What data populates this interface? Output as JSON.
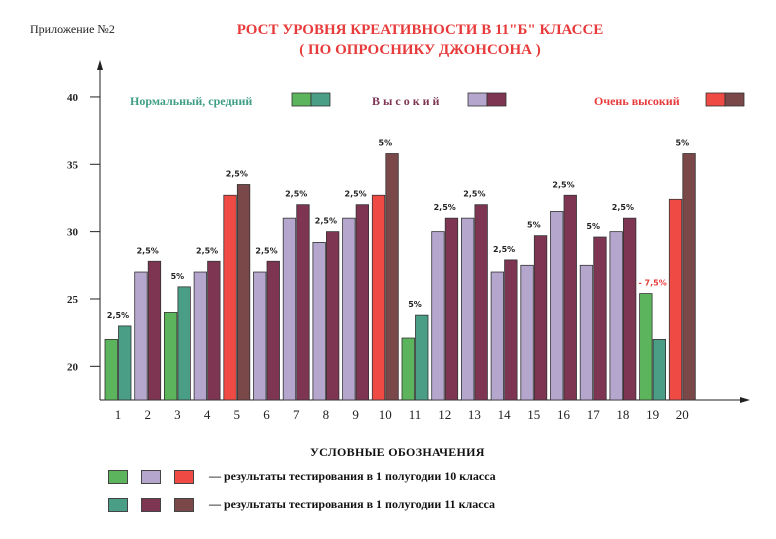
{
  "header": {
    "appendix": "Приложение №2",
    "title_line1": "РОСТ УРОВНЯ КРЕАТИВНОСТИ В 11\"Б\" КЛАССЕ",
    "title_line2": "( ПО ОПРОСНИКУ ДЖОНСОНА )"
  },
  "colors": {
    "normal_10": "#5cb55c",
    "normal_11": "#4a9e86",
    "high_10": "#b4a6cc",
    "high_11": "#7e3552",
    "very_10": "#f04a45",
    "very_11": "#7a4848",
    "level_normal_text": "#3f9e85",
    "level_high_text": "#7e3552",
    "level_very_text": "#e83a3a"
  },
  "chart_data": {
    "type": "bar",
    "title": "РОСТ УРОВНЯ КРЕАТИВНОСТИ В 11\"Б\" КЛАССЕ ( ПО ОПРОСНИКУ ДЖОНСОНА )",
    "categories": [
      "1",
      "2",
      "3",
      "4",
      "5",
      "6",
      "7",
      "8",
      "9",
      "10",
      "11",
      "12",
      "13",
      "14",
      "15",
      "16",
      "17",
      "18",
      "19",
      "20"
    ],
    "ylim": [
      17.5,
      42
    ],
    "yticks": [
      20,
      25,
      30,
      35,
      40
    ],
    "levels": [
      {
        "key": "normal",
        "label": "Нормальный, средний"
      },
      {
        "key": "high",
        "label": "В ы с о к и й"
      },
      {
        "key": "very",
        "label": "Очень высокий"
      }
    ],
    "series": [
      {
        "name": "результаты тестирования в 1 полугодии 10 класса",
        "values": [
          22,
          27,
          24,
          27,
          32.7,
          27,
          31,
          29.2,
          31,
          32.7,
          22.1,
          30,
          31,
          27,
          27.5,
          31.5,
          27.5,
          30,
          25.4,
          32.4
        ]
      },
      {
        "name": "результаты тестирования в 1 полугодии 11 класса",
        "values": [
          23,
          27.8,
          25.9,
          27.8,
          33.5,
          27.8,
          32,
          30,
          32,
          35.8,
          23.8,
          31,
          32,
          27.9,
          29.7,
          32.7,
          29.6,
          31,
          22,
          35.8
        ]
      }
    ],
    "bar_levels": [
      "normal",
      "high",
      "normal",
      "high",
      "very",
      "high",
      "high",
      "high",
      "high",
      "very",
      "normal",
      "high",
      "high",
      "high",
      "high",
      "high",
      "high",
      "high",
      "normal",
      "very"
    ],
    "data_labels": [
      "2,5%",
      "2,5%",
      "5%",
      "2,5%",
      "2,5%",
      "2,5%",
      "2,5%",
      "2,5%",
      "2,5%",
      "5%",
      "5%",
      "2,5%",
      "2,5%",
      "2,5%",
      "5%",
      "2,5%",
      "5%",
      "2,5%",
      "- 7,5%",
      "5%"
    ],
    "legend": {
      "title": "УСЛОВНЫЕ ОБОЗНАЧЕНИЯ",
      "row1": "— результаты тестирования в 1 полугодии 10 класса",
      "row2": "— результаты тестирования в 1 полугодии 11 класса"
    }
  }
}
